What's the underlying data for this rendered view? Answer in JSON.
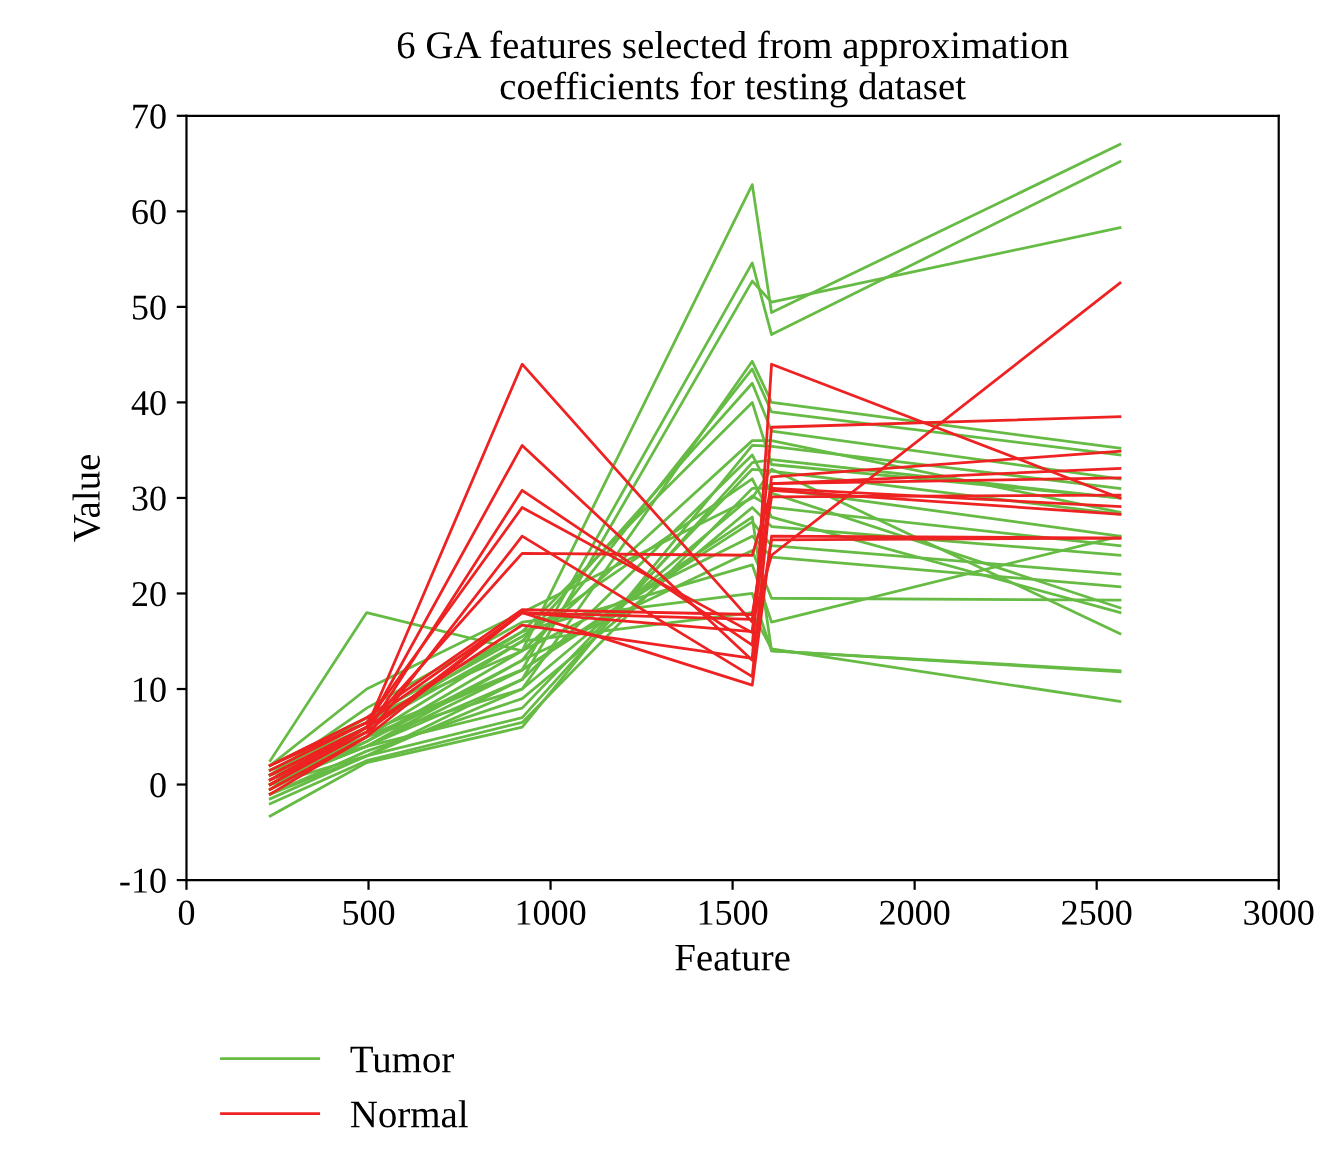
{
  "chart_data": {
    "type": "line",
    "title": "6 GA features selected from approximation\ncoefficients for testing dataset",
    "xlabel": "Feature",
    "ylabel": "Value",
    "x": [
      230,
      495,
      922,
      1554,
      1607,
      2564
    ],
    "xlim": [
      0,
      3000
    ],
    "xticks": [
      0,
      500,
      1000,
      1500,
      2000,
      2500,
      3000
    ],
    "ylim": [
      -10,
      70
    ],
    "yticks": [
      -10,
      0,
      10,
      20,
      30,
      40,
      50,
      60,
      70
    ],
    "grid": false,
    "legend": "bottom left",
    "marker": "none",
    "line_style": "solid",
    "series": [
      {
        "name": "Tumor",
        "color": "#66bb44",
        "values": [
          2.5,
          18,
          14,
          62.8,
          49.4,
          67
        ]
      },
      {
        "color": "#66bb44",
        "values": [
          1,
          5,
          12,
          54.6,
          47.1,
          65.2
        ]
      },
      {
        "color": "#66bb44",
        "values": [
          0,
          4,
          11,
          52.7,
          50.5,
          58.3
        ]
      },
      {
        "color": "#66bb44",
        "values": [
          -1,
          3,
          10,
          44.3,
          40,
          35.2
        ]
      },
      {
        "color": "#66bb44",
        "values": [
          0.5,
          4.5,
          13,
          43.5,
          39,
          34.5
        ]
      },
      {
        "color": "#66bb44",
        "values": [
          1.5,
          6,
          15,
          42,
          37,
          32
        ]
      },
      {
        "color": "#66bb44",
        "values": [
          -3.3,
          2.3,
          6,
          35.5,
          35.4,
          31
        ]
      },
      {
        "color": "#66bb44",
        "values": [
          0,
          3,
          7,
          33.7,
          34,
          30
        ]
      },
      {
        "color": "#66bb44",
        "values": [
          1,
          4,
          8,
          33,
          32.8,
          28.3
        ]
      },
      {
        "color": "#66bb44",
        "values": [
          -2,
          2.5,
          6.5,
          31,
          31,
          26
        ]
      },
      {
        "color": "#66bb44",
        "values": [
          0.5,
          5,
          10,
          30.2,
          29,
          25
        ]
      },
      {
        "color": "#66bb44",
        "values": [
          -1,
          3.5,
          9,
          29,
          27,
          24
        ]
      },
      {
        "color": "#66bb44",
        "values": [
          1,
          5.5,
          12,
          27.5,
          25,
          22
        ]
      },
      {
        "color": "#66bb44",
        "values": [
          2,
          7,
          14,
          26,
          23.8,
          20.7
        ]
      },
      {
        "color": "#66bb44",
        "values": [
          0,
          4,
          13,
          24.5,
          19.5,
          19.3
        ]
      },
      {
        "color": "#66bb44",
        "values": [
          -0.5,
          6,
          16,
          23,
          17,
          26
        ]
      },
      {
        "color": "#66bb44",
        "values": [
          1,
          8,
          17,
          20,
          14,
          11.9
        ]
      },
      {
        "color": "#66bb44",
        "values": [
          0,
          5,
          15,
          18,
          14.2,
          8.7
        ]
      },
      {
        "color": "#66bb44",
        "values": [
          -1.5,
          3,
          11,
          34.5,
          30.5,
          18.5
        ]
      },
      {
        "color": "#66bb44",
        "values": [
          1.5,
          6.5,
          15.5,
          32,
          28,
          18
        ]
      },
      {
        "color": "#66bb44",
        "values": [
          0,
          4,
          12,
          28,
          14,
          11.8
        ]
      },
      {
        "color": "#66bb44",
        "values": [
          2,
          10,
          18,
          30,
          33,
          15.8
        ]
      },
      {
        "color": "#66bb44",
        "values": [
          -0.5,
          4.5,
          14,
          36,
          36,
          28.5
        ]
      },
      {
        "color": "#66bb44",
        "values": [
          1,
          7,
          16,
          40,
          33.5,
          30
        ]
      },
      {
        "name": "Normal",
        "color": "#ee2222",
        "values": [
          1,
          6,
          44,
          17,
          24,
          52.5
        ]
      },
      {
        "color": "#ee2222",
        "values": [
          0.5,
          6,
          35.5,
          13,
          44,
          30
        ]
      },
      {
        "color": "#ee2222",
        "values": [
          0,
          5.5,
          30.8,
          14.6,
          37.4,
          38.5
        ]
      },
      {
        "color": "#ee2222",
        "values": [
          1.5,
          6.5,
          29,
          15.9,
          32.2,
          34.9
        ]
      },
      {
        "color": "#ee2222",
        "values": [
          -1,
          5,
          26,
          11.3,
          31.5,
          33.1
        ]
      },
      {
        "color": "#ee2222",
        "values": [
          0,
          6,
          24.2,
          24,
          30.8,
          28.3
        ]
      },
      {
        "color": "#ee2222",
        "values": [
          2,
          7,
          18.3,
          17.8,
          30.1,
          30.3
        ]
      },
      {
        "color": "#ee2222",
        "values": [
          -0.5,
          5,
          18,
          10.4,
          26,
          25.8
        ]
      },
      {
        "color": "#ee2222",
        "values": [
          1,
          6,
          16.7,
          13.2,
          25.6,
          25.8
        ]
      },
      {
        "color": "#ee2222",
        "values": [
          0.5,
          5.5,
          18,
          17.3,
          31,
          29.1
        ]
      },
      {
        "color": "#ee2222",
        "values": [
          2,
          6.5,
          18,
          16,
          31.5,
          32.1
        ]
      }
    ]
  }
}
